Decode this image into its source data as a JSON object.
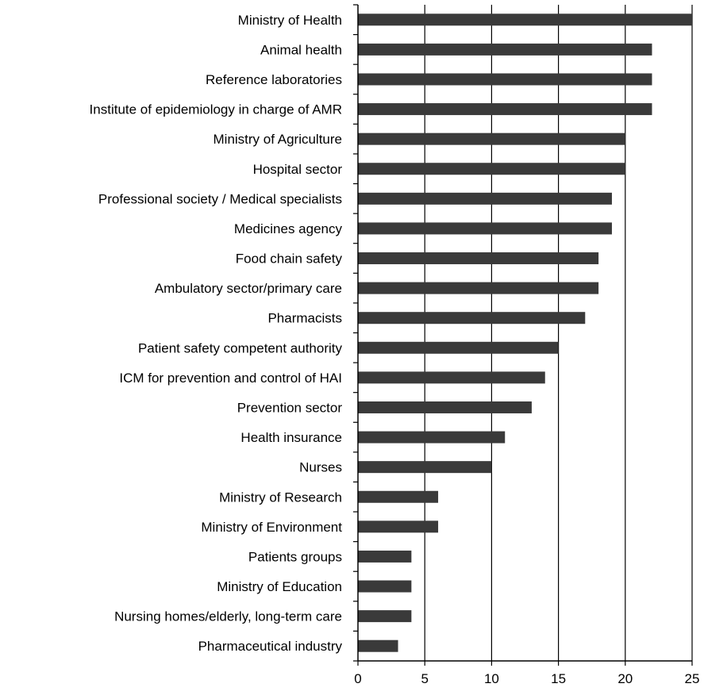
{
  "colors": {
    "bar": "#3a3a3a",
    "axis": "#000000",
    "grid": "#000000",
    "background": "#ffffff"
  },
  "chart_data": {
    "type": "bar",
    "orientation": "horizontal",
    "title": "",
    "xlabel": "",
    "ylabel": "",
    "xlim": [
      0,
      25
    ],
    "x_ticks": [
      0,
      5,
      10,
      15,
      20,
      25
    ],
    "grid": "vertical",
    "legend": "none",
    "categories": [
      "Ministry of Health",
      "Animal health",
      "Reference laboratories",
      "Institute of epidemiology in charge of AMR",
      "Ministry of Agriculture",
      "Hospital sector",
      "Professional society / Medical specialists",
      "Medicines agency",
      "Food chain safety",
      "Ambulatory sector/primary care",
      "Pharmacists",
      "Patient safety competent authority",
      "ICM for prevention and control of HAI",
      "Prevention sector",
      "Health insurance",
      "Nurses",
      "Ministry of Research",
      "Ministry of Environment",
      "Patients groups",
      "Ministry of Education",
      "Nursing homes/elderly, long-term care",
      "Pharmaceutical industry"
    ],
    "values": [
      25,
      22,
      22,
      22,
      20,
      20,
      19,
      19,
      18,
      18,
      17,
      15,
      14,
      13,
      11,
      10,
      6,
      6,
      4,
      4,
      4,
      3
    ]
  }
}
